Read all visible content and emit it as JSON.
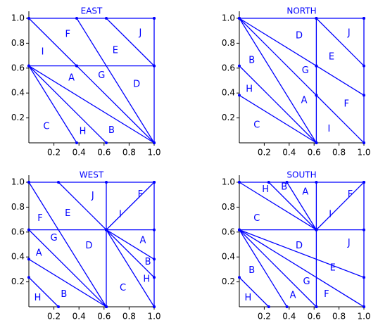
{
  "chart_data": [
    {
      "type": "lines",
      "title": "EAST",
      "color": "#0000ff",
      "xlim": [
        0,
        1
      ],
      "ylim": [
        0,
        1
      ],
      "xticks": [
        0.2,
        0.4,
        0.6,
        0.8,
        {
          "value": 1,
          "label": "1.0"
        }
      ],
      "yticks": [
        0.2,
        0.4,
        0.6,
        0.8,
        {
          "value": 1,
          "label": "1.0"
        }
      ],
      "segments": [
        {
          "x": [
            0,
            1
          ],
          "y": [
            1,
            1
          ]
        },
        {
          "x": [
            1,
            1
          ],
          "y": [
            0,
            1
          ]
        },
        {
          "x": [
            0,
            1
          ],
          "y": [
            0.618,
            0.618
          ]
        },
        {
          "x": [
            0,
            0.382
          ],
          "y": [
            1,
            0.618
          ]
        },
        {
          "x": [
            0.382,
            1
          ],
          "y": [
            1,
            0
          ]
        },
        {
          "x": [
            0.618,
            1
          ],
          "y": [
            1,
            0.618
          ]
        },
        {
          "x": [
            0.382,
            1
          ],
          "y": [
            0.618,
            0
          ]
        },
        {
          "x": [
            0,
            1
          ],
          "y": [
            0.618,
            0
          ]
        },
        {
          "x": [
            0,
            0.618
          ],
          "y": [
            0.618,
            0
          ]
        },
        {
          "x": [
            0,
            0.382
          ],
          "y": [
            0.618,
            0
          ]
        }
      ],
      "labels": [
        {
          "text": "F",
          "x": 0.31,
          "y": 0.87
        },
        {
          "text": "J",
          "x": 0.89,
          "y": 0.88
        },
        {
          "text": "I",
          "x": 0.11,
          "y": 0.73
        },
        {
          "text": "E",
          "x": 0.69,
          "y": 0.74
        },
        {
          "text": "A",
          "x": 0.34,
          "y": 0.52
        },
        {
          "text": "G",
          "x": 0.58,
          "y": 0.54
        },
        {
          "text": "D",
          "x": 0.86,
          "y": 0.47
        },
        {
          "text": "C",
          "x": 0.14,
          "y": 0.13
        },
        {
          "text": "H",
          "x": 0.43,
          "y": 0.09
        },
        {
          "text": "B",
          "x": 0.66,
          "y": 0.1
        }
      ]
    },
    {
      "type": "lines",
      "title": "NORTH",
      "color": "#0000ff",
      "xlim": [
        0,
        1
      ],
      "ylim": [
        0,
        1
      ],
      "xticks": [
        0.2,
        0.4,
        0.6,
        0.8,
        {
          "value": 1,
          "label": "1.0"
        }
      ],
      "yticks": [
        0.2,
        0.4,
        0.6,
        0.8,
        {
          "value": 1,
          "label": "1.0"
        }
      ],
      "segments": [
        {
          "x": [
            0,
            1
          ],
          "y": [
            1,
            1
          ]
        },
        {
          "x": [
            1,
            1
          ],
          "y": [
            0,
            1
          ]
        },
        {
          "x": [
            0.618,
            0.618
          ],
          "y": [
            0,
            1
          ]
        },
        {
          "x": [
            0,
            0.618
          ],
          "y": [
            1,
            0.618
          ]
        },
        {
          "x": [
            0,
            0.618
          ],
          "y": [
            1,
            0.382
          ]
        },
        {
          "x": [
            0,
            0.618
          ],
          "y": [
            1,
            0
          ]
        },
        {
          "x": [
            0,
            0.618
          ],
          "y": [
            0.618,
            0
          ]
        },
        {
          "x": [
            0,
            0.618
          ],
          "y": [
            0.382,
            0
          ]
        },
        {
          "x": [
            0.618,
            1
          ],
          "y": [
            1,
            0.618
          ]
        },
        {
          "x": [
            0.618,
            1
          ],
          "y": [
            0.618,
            0.382
          ]
        },
        {
          "x": [
            0.618,
            1
          ],
          "y": [
            0.382,
            0
          ]
        }
      ],
      "labels": [
        {
          "text": "D",
          "x": 0.48,
          "y": 0.86
        },
        {
          "text": "J",
          "x": 0.88,
          "y": 0.88
        },
        {
          "text": "E",
          "x": 0.74,
          "y": 0.69
        },
        {
          "text": "B",
          "x": 0.1,
          "y": 0.66
        },
        {
          "text": "G",
          "x": 0.53,
          "y": 0.58
        },
        {
          "text": "H",
          "x": 0.08,
          "y": 0.43
        },
        {
          "text": "A",
          "x": 0.52,
          "y": 0.34
        },
        {
          "text": "F",
          "x": 0.86,
          "y": 0.31
        },
        {
          "text": "C",
          "x": 0.14,
          "y": 0.14
        },
        {
          "text": "I",
          "x": 0.72,
          "y": 0.11
        }
      ]
    },
    {
      "type": "lines",
      "title": "WEST",
      "color": "#0000ff",
      "xlim": [
        0,
        1
      ],
      "ylim": [
        0,
        1
      ],
      "xticks": [
        0.2,
        0.4,
        0.6,
        0.8,
        {
          "value": 1,
          "label": "1.0"
        }
      ],
      "yticks": [
        0.2,
        0.4,
        0.6,
        0.8,
        {
          "value": 1,
          "label": "1.0"
        }
      ],
      "segments": [
        {
          "x": [
            0,
            1
          ],
          "y": [
            1,
            1
          ]
        },
        {
          "x": [
            1,
            1
          ],
          "y": [
            0,
            1
          ]
        },
        {
          "x": [
            0,
            1
          ],
          "y": [
            0.618,
            0.618
          ]
        },
        {
          "x": [
            0.618,
            0.618
          ],
          "y": [
            0,
            1
          ]
        },
        {
          "x": [
            0,
            0.618
          ],
          "y": [
            1,
            0
          ]
        },
        {
          "x": [
            0.236,
            0.618
          ],
          "y": [
            1,
            0.618
          ]
        },
        {
          "x": [
            0.618,
            1
          ],
          "y": [
            0.618,
            1
          ]
        },
        {
          "x": [
            0,
            0.618
          ],
          "y": [
            0.618,
            0
          ]
        },
        {
          "x": [
            0,
            0.618
          ],
          "y": [
            0.382,
            0
          ]
        },
        {
          "x": [
            0,
            0.236
          ],
          "y": [
            0.236,
            0
          ]
        },
        {
          "x": [
            0.618,
            1
          ],
          "y": [
            0.618,
            0.382
          ]
        },
        {
          "x": [
            0.618,
            1
          ],
          "y": [
            0.618,
            0.236
          ]
        },
        {
          "x": [
            0.618,
            1
          ],
          "y": [
            0.618,
            0
          ]
        }
      ],
      "labels": [
        {
          "text": "F",
          "x": 0.09,
          "y": 0.71
        },
        {
          "text": "E",
          "x": 0.31,
          "y": 0.75
        },
        {
          "text": "J",
          "x": 0.51,
          "y": 0.89
        },
        {
          "text": "I",
          "x": 0.73,
          "y": 0.74
        },
        {
          "text": "F",
          "x": 0.89,
          "y": 0.9
        },
        {
          "text": "G",
          "x": 0.2,
          "y": 0.55
        },
        {
          "text": "A",
          "x": 0.08,
          "y": 0.43
        },
        {
          "text": "D",
          "x": 0.48,
          "y": 0.49
        },
        {
          "text": "A",
          "x": 0.91,
          "y": 0.53
        },
        {
          "text": "B",
          "x": 0.95,
          "y": 0.36
        },
        {
          "text": "H",
          "x": 0.94,
          "y": 0.22
        },
        {
          "text": "C",
          "x": 0.75,
          "y": 0.15
        },
        {
          "text": "H",
          "x": 0.07,
          "y": 0.07
        },
        {
          "text": "B",
          "x": 0.28,
          "y": 0.1
        }
      ]
    },
    {
      "type": "lines",
      "title": "SOUTH",
      "color": "#0000ff",
      "xlim": [
        0,
        1
      ],
      "ylim": [
        0,
        1
      ],
      "xticks": [
        0.2,
        0.4,
        0.6,
        0.8,
        {
          "value": 1,
          "label": "1.0"
        }
      ],
      "yticks": [
        0.2,
        0.4,
        0.6,
        0.8,
        {
          "value": 1,
          "label": "1.0"
        }
      ],
      "segments": [
        {
          "x": [
            0,
            1
          ],
          "y": [
            1,
            1
          ]
        },
        {
          "x": [
            1,
            1
          ],
          "y": [
            0,
            1
          ]
        },
        {
          "x": [
            0,
            1
          ],
          "y": [
            0.618,
            0.618
          ]
        },
        {
          "x": [
            0.618,
            0.618
          ],
          "y": [
            0,
            1
          ]
        },
        {
          "x": [
            0,
            0.618
          ],
          "y": [
            1,
            0.618
          ]
        },
        {
          "x": [
            0.236,
            0.618
          ],
          "y": [
            1,
            0.618
          ]
        },
        {
          "x": [
            0.382,
            0.618
          ],
          "y": [
            1,
            0.618
          ]
        },
        {
          "x": [
            0.618,
            1
          ],
          "y": [
            0.618,
            1
          ]
        },
        {
          "x": [
            0,
            1
          ],
          "y": [
            0.618,
            0.236
          ]
        },
        {
          "x": [
            0,
            1
          ],
          "y": [
            0.618,
            0
          ]
        },
        {
          "x": [
            0,
            0.618
          ],
          "y": [
            0.618,
            0
          ]
        },
        {
          "x": [
            0,
            0.382
          ],
          "y": [
            0.618,
            0
          ]
        },
        {
          "x": [
            0,
            0.236
          ],
          "y": [
            0.236,
            0
          ]
        }
      ],
      "labels": [
        {
          "text": "H",
          "x": 0.21,
          "y": 0.94
        },
        {
          "text": "B",
          "x": 0.36,
          "y": 0.96
        },
        {
          "text": "A",
          "x": 0.53,
          "y": 0.92
        },
        {
          "text": "F",
          "x": 0.89,
          "y": 0.9
        },
        {
          "text": "C",
          "x": 0.14,
          "y": 0.71
        },
        {
          "text": "I",
          "x": 0.73,
          "y": 0.74
        },
        {
          "text": "D",
          "x": 0.48,
          "y": 0.49
        },
        {
          "text": "J",
          "x": 0.88,
          "y": 0.51
        },
        {
          "text": "B",
          "x": 0.1,
          "y": 0.29
        },
        {
          "text": "E",
          "x": 0.75,
          "y": 0.31
        },
        {
          "text": "G",
          "x": 0.54,
          "y": 0.2
        },
        {
          "text": "F",
          "x": 0.7,
          "y": 0.1
        },
        {
          "text": "H",
          "x": 0.07,
          "y": 0.07
        },
        {
          "text": "A",
          "x": 0.43,
          "y": 0.09
        }
      ]
    }
  ]
}
